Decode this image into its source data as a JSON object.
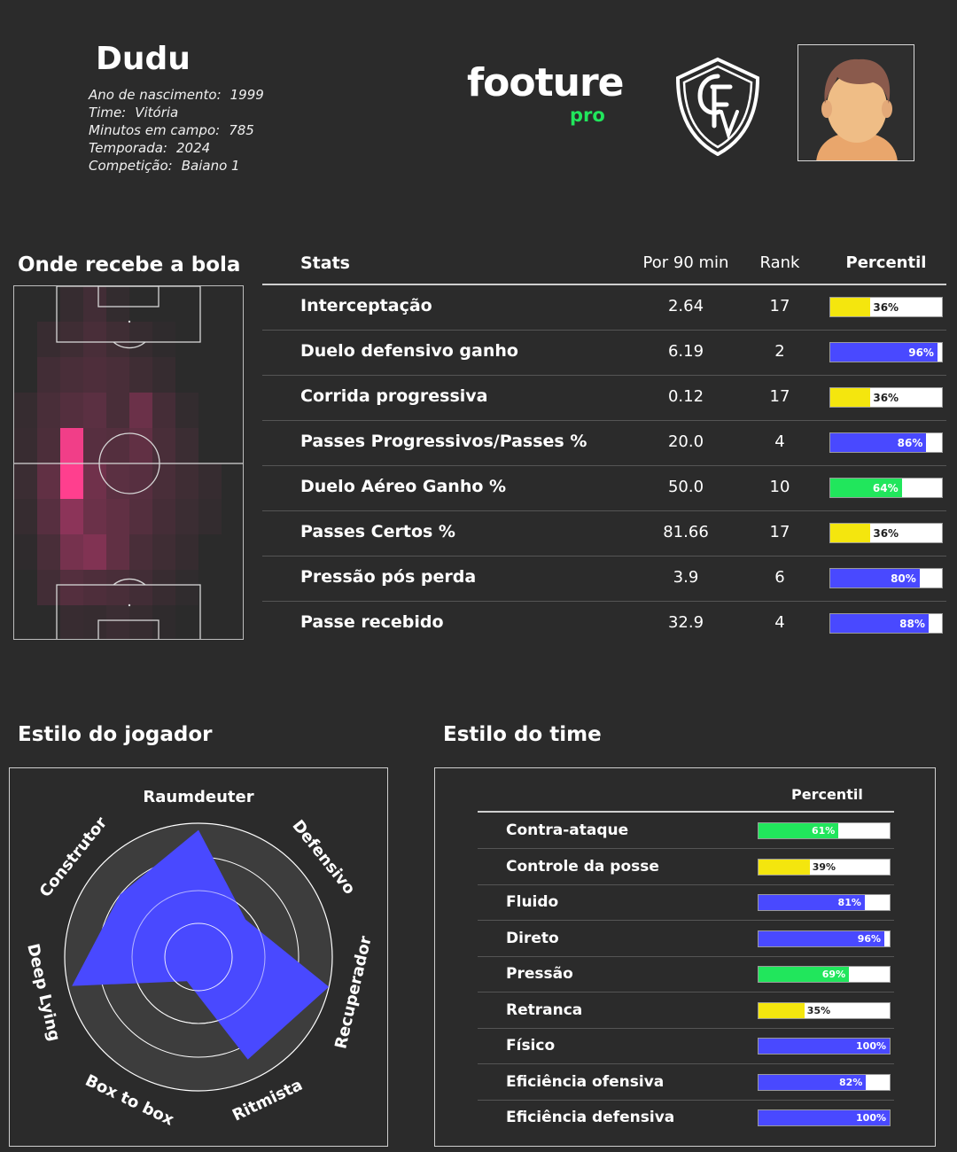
{
  "player": {
    "name": "Dudu",
    "info": [
      {
        "label": "Ano de nascimento:",
        "value": "1999"
      },
      {
        "label": "Time:",
        "value": "Vitória"
      },
      {
        "label": "Minutos em campo:",
        "value": "785"
      },
      {
        "label": "Temporada:",
        "value": "2024"
      },
      {
        "label": "Competição:",
        "value": "Baiano 1"
      }
    ]
  },
  "logo": {
    "main": "footure",
    "sub": "pro"
  },
  "colors": {
    "background": "#2b2b2b",
    "blue": "#4949ff",
    "yellow": "#f4e60e",
    "green": "#21e65c",
    "heat": "#ff3f8e"
  },
  "heatmap": {
    "title": "Onde recebe a bola",
    "cols": 10,
    "rows": 10,
    "cells": [
      [
        0,
        0,
        0.1,
        0.18,
        0.08,
        0,
        0,
        0,
        0,
        0
      ],
      [
        0,
        0.12,
        0.16,
        0.22,
        0.16,
        0.1,
        0.05,
        0,
        0,
        0
      ],
      [
        0,
        0.18,
        0.22,
        0.25,
        0.22,
        0.16,
        0.1,
        0,
        0,
        0
      ],
      [
        0.1,
        0.22,
        0.28,
        0.32,
        0.22,
        0.4,
        0.2,
        0.08,
        0,
        0
      ],
      [
        0.12,
        0.24,
        0.95,
        0.3,
        0.28,
        0.35,
        0.22,
        0.14,
        0,
        0
      ],
      [
        0.14,
        0.35,
        1.0,
        0.42,
        0.32,
        0.3,
        0.22,
        0.16,
        0.1,
        0
      ],
      [
        0.1,
        0.3,
        0.55,
        0.4,
        0.35,
        0.28,
        0.2,
        0.14,
        0.08,
        0
      ],
      [
        0.05,
        0.22,
        0.45,
        0.5,
        0.35,
        0.22,
        0.16,
        0.1,
        0,
        0
      ],
      [
        0,
        0.18,
        0.28,
        0.25,
        0.22,
        0.18,
        0.12,
        0.06,
        0,
        0
      ],
      [
        0,
        0,
        0.12,
        0.1,
        0.14,
        0.1,
        0.05,
        0,
        0,
        0
      ]
    ]
  },
  "stats": {
    "headers": {
      "stats": "Stats",
      "per90": "Por 90 min",
      "rank": "Rank",
      "percentile": "Percentil"
    },
    "rows": [
      {
        "name": "Interceptação",
        "per90": "2.64",
        "rank": "17",
        "pct": 36,
        "pct_label": "36%",
        "color": "#f4e60e"
      },
      {
        "name": "Duelo defensivo ganho",
        "per90": "6.19",
        "rank": "2",
        "pct": 96,
        "pct_label": "96%",
        "color": "#4949ff"
      },
      {
        "name": "Corrida progressiva",
        "per90": "0.12",
        "rank": "17",
        "pct": 36,
        "pct_label": "36%",
        "color": "#f4e60e"
      },
      {
        "name": "Passes Progressivos/Passes %",
        "per90": "20.0",
        "rank": "4",
        "pct": 86,
        "pct_label": "86%",
        "color": "#4949ff"
      },
      {
        "name": "Duelo Aéreo Ganho %",
        "per90": "50.0",
        "rank": "10",
        "pct": 64,
        "pct_label": "64%",
        "color": "#21e65c"
      },
      {
        "name": "Passes Certos %",
        "per90": "81.66",
        "rank": "17",
        "pct": 36,
        "pct_label": "36%",
        "color": "#f4e60e"
      },
      {
        "name": "Pressão pós perda",
        "per90": "3.9",
        "rank": "6",
        "pct": 80,
        "pct_label": "80%",
        "color": "#4949ff"
      },
      {
        "name": "Passe recebido",
        "per90": "32.9",
        "rank": "4",
        "pct": 88,
        "pct_label": "88%",
        "color": "#4949ff"
      }
    ]
  },
  "player_style": {
    "title": "Estilo do jogador",
    "axes": [
      "Raumdeuter",
      "Defensivo",
      "Recuperador",
      "Ritmista",
      "Box to box",
      "Deep Lying",
      "Construtor"
    ],
    "values": [
      0.95,
      0.45,
      1.0,
      0.85,
      0.2,
      0.97,
      0.75
    ]
  },
  "team_style": {
    "title": "Estilo do time",
    "header": "Percentil",
    "rows": [
      {
        "name": "Contra-ataque",
        "pct": 61,
        "pct_label": "61%",
        "color": "#21e65c"
      },
      {
        "name": "Controle da posse",
        "pct": 39,
        "pct_label": "39%",
        "color": "#f4e60e"
      },
      {
        "name": "Fluido",
        "pct": 81,
        "pct_label": "81%",
        "color": "#4949ff"
      },
      {
        "name": "Direto",
        "pct": 96,
        "pct_label": "96%",
        "color": "#4949ff"
      },
      {
        "name": "Pressão",
        "pct": 69,
        "pct_label": "69%",
        "color": "#21e65c"
      },
      {
        "name": "Retranca",
        "pct": 35,
        "pct_label": "35%",
        "color": "#f4e60e"
      },
      {
        "name": "Físico",
        "pct": 100,
        "pct_label": "100%",
        "color": "#4949ff"
      },
      {
        "name": "Eficiência ofensiva",
        "pct": 82,
        "pct_label": "82%",
        "color": "#4949ff"
      },
      {
        "name": "Eficiência defensiva",
        "pct": 100,
        "pct_label": "100%",
        "color": "#4949ff"
      }
    ]
  }
}
